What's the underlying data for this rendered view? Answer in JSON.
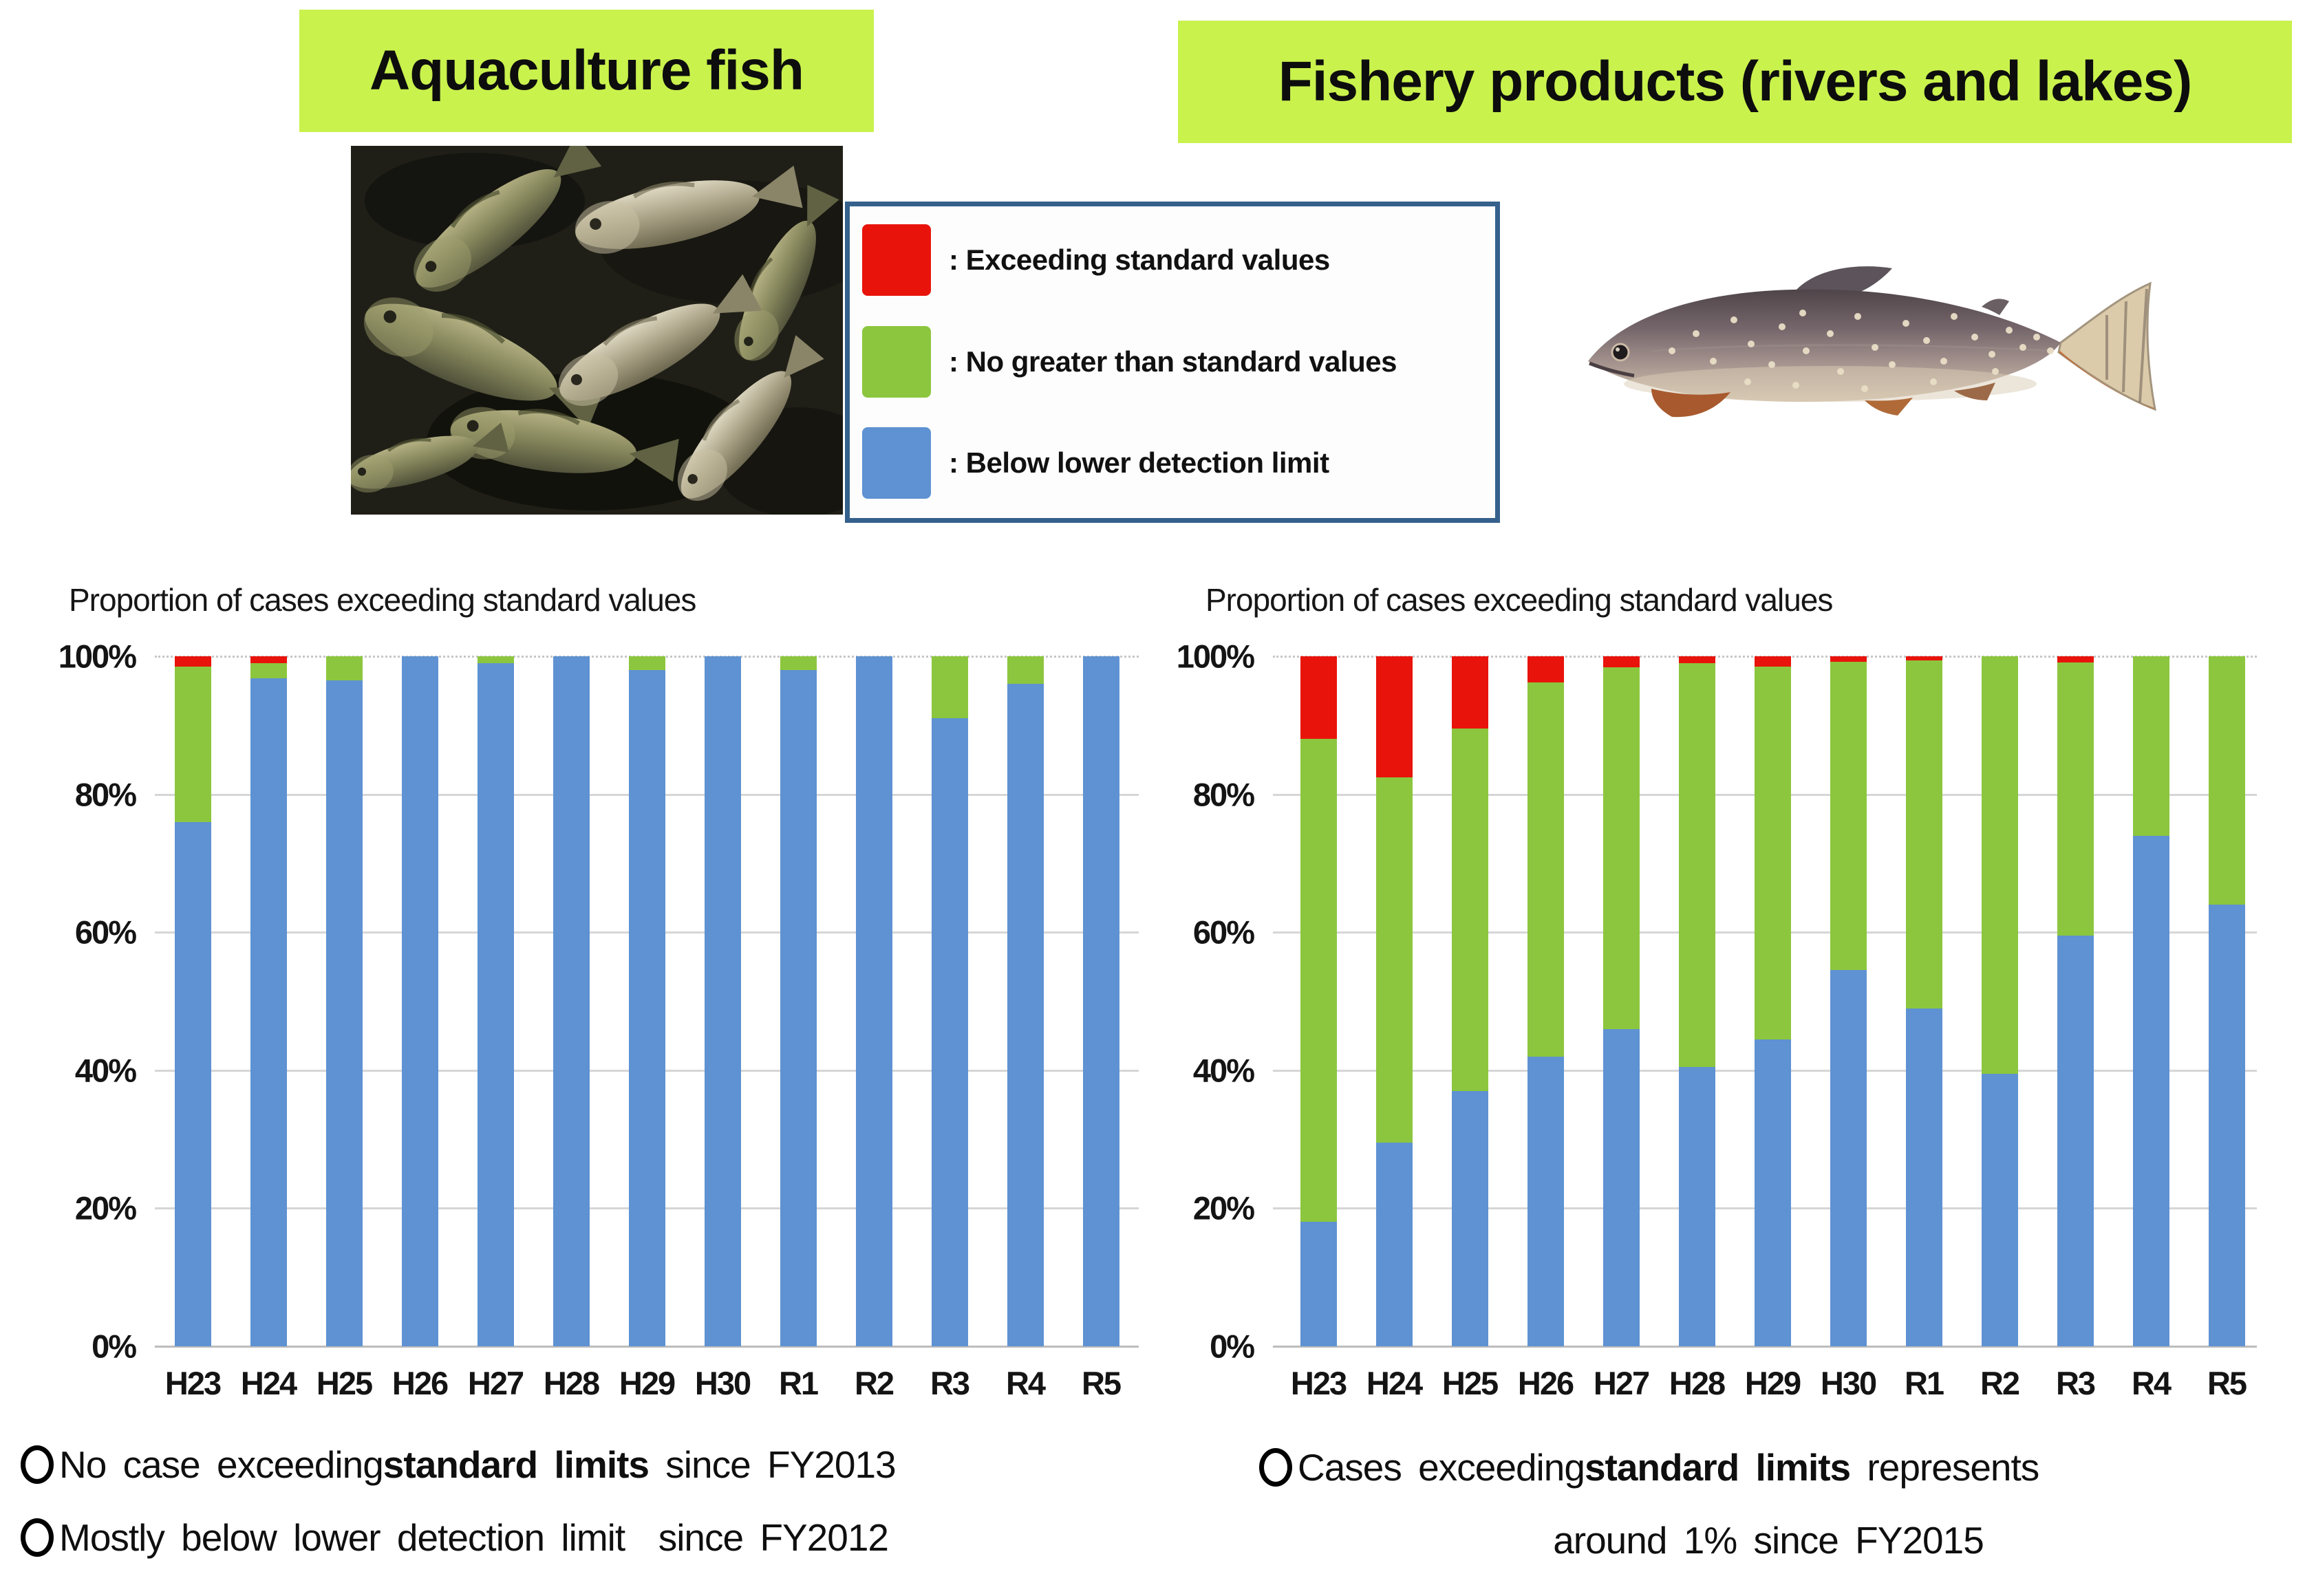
{
  "titles": {
    "left": "Aquaculture fish",
    "right": "Fishery products (rivers and lakes)"
  },
  "colors": {
    "title_bg": "#c9f24d",
    "legend_border": "#35618c",
    "bar_blue": "#5e92d2",
    "bar_green": "#8cc63e",
    "bar_red": "#e8130b",
    "gridline": "#d6d6d6",
    "text": "#1a1a1a"
  },
  "legend": {
    "items": [
      {
        "key": "exceeding",
        "label": ": Exceeding standard values",
        "color": "#e8130b"
      },
      {
        "key": "no_greater",
        "label": ": No greater than standard values",
        "color": "#8cc63e"
      },
      {
        "key": "below_detection",
        "label": ": Below lower detection limit",
        "color": "#5e92d2"
      }
    ]
  },
  "chart_data": [
    {
      "type": "bar",
      "stacked": true,
      "subject": "Aquaculture fish",
      "title": "Proportion of cases exceeding standard values",
      "xlabel": "",
      "ylabel": "",
      "ylim": [
        0,
        100
      ],
      "grid": true,
      "legend_position": "none",
      "yticks": [
        "0%",
        "20%",
        "40%",
        "60%",
        "80%",
        "100%"
      ],
      "categories": [
        "H23",
        "H24",
        "H25",
        "H26",
        "H27",
        "H28",
        "H29",
        "H30",
        "R1",
        "R2",
        "R3",
        "R4",
        "R5"
      ],
      "series": [
        {
          "name": "Below lower detection limit",
          "key": "below-detection",
          "color": "#5e92d2",
          "values": [
            76,
            96.8,
            96.5,
            100,
            99,
            100,
            98,
            100,
            98,
            100,
            91,
            96,
            100
          ]
        },
        {
          "name": "No greater than standard values",
          "key": "within-standard",
          "color": "#8cc63e",
          "values": [
            22.5,
            2.2,
            3.5,
            0,
            1,
            0,
            2,
            0,
            2,
            0,
            9,
            4,
            0
          ]
        },
        {
          "name": "Exceeding standard values",
          "key": "exceeding",
          "color": "#e8130b",
          "values": [
            1.5,
            1,
            0,
            0,
            0,
            0,
            0,
            0,
            0,
            0,
            0,
            0,
            0
          ]
        }
      ]
    },
    {
      "type": "bar",
      "stacked": true,
      "subject": "Fishery products (rivers and lakes)",
      "title": "Proportion of cases exceeding standard values",
      "xlabel": "",
      "ylabel": "",
      "ylim": [
        0,
        100
      ],
      "grid": true,
      "legend_position": "none",
      "yticks": [
        "0%",
        "20%",
        "40%",
        "60%",
        "80%",
        "100%"
      ],
      "categories": [
        "H23",
        "H24",
        "H25",
        "H26",
        "H27",
        "H28",
        "H29",
        "H30",
        "R1",
        "R2",
        "R3",
        "R4",
        "R5"
      ],
      "series": [
        {
          "name": "Below lower detection limit",
          "key": "below-detection",
          "color": "#5e92d2",
          "values": [
            18,
            29.5,
            37,
            42,
            46,
            40.5,
            44.5,
            54.5,
            49,
            39.5,
            59.5,
            74,
            64
          ]
        },
        {
          "name": "No greater than standard values",
          "key": "within-standard",
          "color": "#8cc63e",
          "values": [
            70,
            53,
            52.5,
            54.2,
            52.4,
            58.5,
            54,
            44.7,
            50.4,
            60.5,
            39.6,
            26,
            36
          ]
        },
        {
          "name": "Exceeding standard values",
          "key": "exceeding",
          "color": "#e8130b",
          "values": [
            12,
            17.5,
            10.5,
            3.8,
            1.6,
            1,
            1.5,
            0.8,
            0.6,
            0,
            0.9,
            0,
            0
          ]
        }
      ]
    }
  ],
  "notes": {
    "left": [
      {
        "bullet": true,
        "align": "left",
        "segments": [
          {
            "t": "No case exceeding ",
            "b": false
          },
          {
            "t": "standard limits",
            "b": true
          },
          {
            "t": "  since FY2013",
            "b": false
          }
        ]
      },
      {
        "bullet": true,
        "align": "left",
        "segments": [
          {
            "t": "Mostly below lower detection limit  since FY2012",
            "b": false
          }
        ]
      }
    ],
    "right": [
      {
        "bullet": true,
        "align": "left",
        "segments": [
          {
            "t": "Cases exceeding ",
            "b": false
          },
          {
            "t": "standard limits",
            "b": true
          },
          {
            "t": "  represents",
            "b": false
          }
        ]
      },
      {
        "bullet": false,
        "align": "center",
        "segments": [
          {
            "t": "around 1% since FY2015",
            "b": false
          }
        ]
      }
    ]
  }
}
